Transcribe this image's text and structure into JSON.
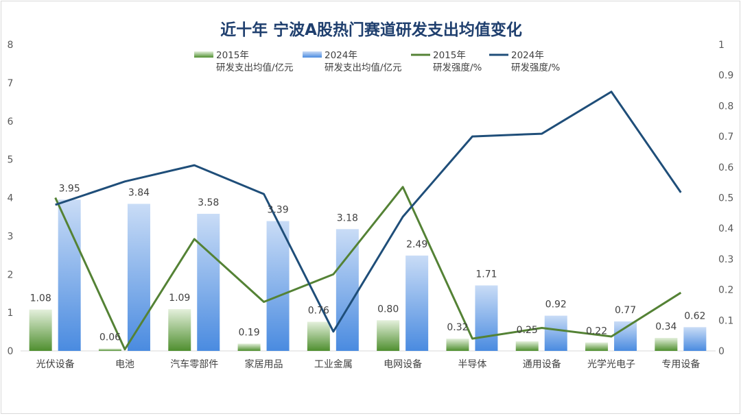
{
  "chart_data": {
    "type": "bar+line",
    "title": "近十年 宁波A股热门赛道研发支出均值变化",
    "categories": [
      "光伏设备",
      "电池",
      "汽车零部件",
      "家居用品",
      "工业金属",
      "电网设备",
      "半导体",
      "通用设备",
      "光学光电子",
      "专用设备"
    ],
    "left_axis": {
      "range": [
        0,
        8
      ],
      "ticks": [
        "0",
        "1",
        "2",
        "3",
        "4",
        "5",
        "6",
        "7",
        "8"
      ]
    },
    "right_axis": {
      "range": [
        0,
        1
      ],
      "ticks": [
        "0",
        "0.1",
        "0.2",
        "0.3",
        "0.4",
        "0.5",
        "0.6",
        "0.7",
        "0.8",
        "0.9",
        "1"
      ]
    },
    "grid": false,
    "legend_placement": "top",
    "series": [
      {
        "name": "2015年\n研发支出均值/亿元",
        "kind": "bar",
        "axis": "left",
        "color": "#5b9a3c",
        "values": [
          1.08,
          0.06,
          1.09,
          0.19,
          0.76,
          0.8,
          0.32,
          0.25,
          0.22,
          0.34
        ],
        "labels": [
          "1.08",
          "0.06",
          "1.09",
          "0.19",
          "0.76",
          "0.80",
          "0.32",
          "0.25",
          "0.22",
          "0.34"
        ]
      },
      {
        "name": "2024年\n研发支出均值/亿元",
        "kind": "bar",
        "axis": "left",
        "color": "#4a8be0",
        "values": [
          3.95,
          3.84,
          3.58,
          3.39,
          3.18,
          2.49,
          1.71,
          0.92,
          0.77,
          0.62
        ],
        "labels": [
          "3.95",
          "3.84",
          "3.58",
          "3.39",
          "3.18",
          "2.49",
          "1.71",
          "0.92",
          "0.77",
          "0.62"
        ]
      },
      {
        "name": "2015年\n研发强度/%",
        "kind": "line",
        "axis": "right",
        "color": "#548235",
        "values": [
          0.5,
          0.005,
          0.365,
          0.16,
          0.25,
          0.535,
          0.04,
          0.075,
          0.047,
          0.19
        ]
      },
      {
        "name": "2024年\n研发强度/%",
        "kind": "line",
        "axis": "right",
        "color": "#1f4e79",
        "values": [
          0.477,
          0.553,
          0.606,
          0.512,
          0.063,
          0.438,
          0.7,
          0.709,
          0.846,
          0.517
        ]
      }
    ]
  }
}
